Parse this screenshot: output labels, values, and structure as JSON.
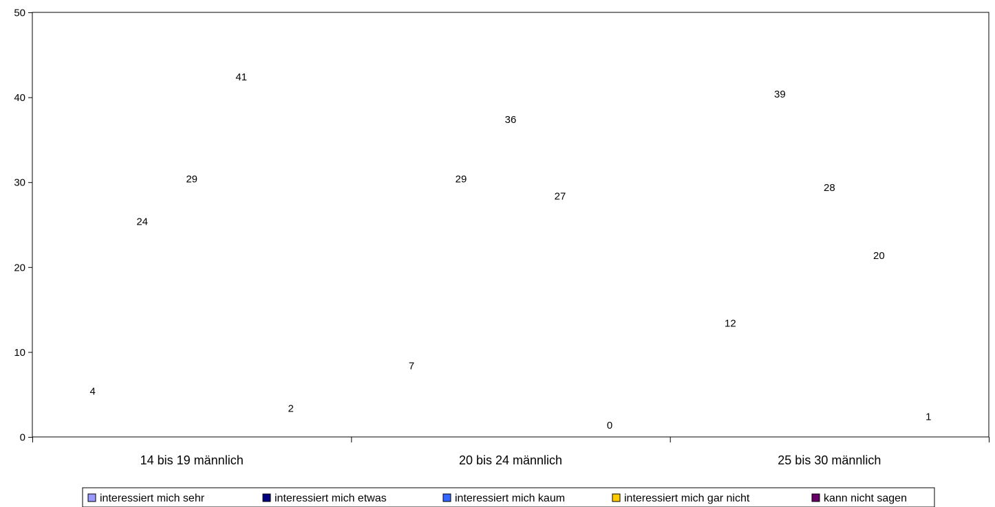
{
  "chart_data": {
    "type": "bar",
    "title": "",
    "xlabel": "",
    "ylabel": "",
    "ylim": [
      0,
      50
    ],
    "yticks": [
      0,
      10,
      20,
      30,
      40,
      50
    ],
    "grid": true,
    "legend_position": "bottom",
    "categories": [
      "14 bis 19 männlich",
      "20 bis 24 männlich",
      "25 bis 30 männlich"
    ],
    "series": [
      {
        "name": "interessiert mich sehr",
        "color": "#9999ff",
        "values": [
          4,
          7,
          12
        ]
      },
      {
        "name": "interessiert mich etwas",
        "color": "#000080",
        "values": [
          24,
          29,
          39
        ]
      },
      {
        "name": "interessiert mich kaum",
        "color": "#3366ff",
        "values": [
          29,
          36,
          28
        ]
      },
      {
        "name": "interessiert mich gar nicht",
        "color": "#ffcc00",
        "values": [
          41,
          27,
          20
        ]
      },
      {
        "name": "kann nicht sagen",
        "color": "#660066",
        "values": [
          2,
          0,
          1
        ]
      }
    ]
  }
}
